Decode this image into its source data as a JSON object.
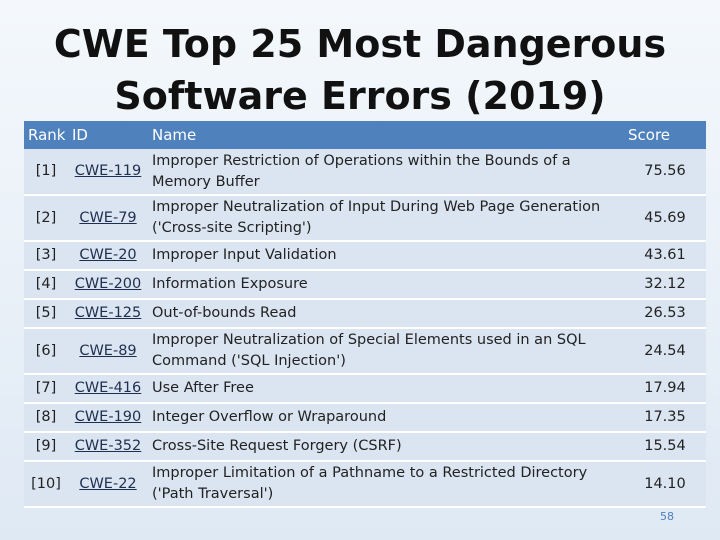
{
  "title_line1": "CWE Top 25 Most Dangerous",
  "title_line2": "Software Errors (2019)",
  "headers": {
    "rank": "Rank",
    "id": "ID",
    "name": "Name",
    "score": "Score"
  },
  "rows": [
    {
      "rank": "[1]",
      "id": "CWE-119",
      "name": "Improper Restriction of Operations within the Bounds of a Memory Buffer",
      "score": "75.56"
    },
    {
      "rank": "[2]",
      "id": "CWE-79",
      "name": "Improper Neutralization of Input During Web Page Generation ('Cross-site Scripting')",
      "score": "45.69"
    },
    {
      "rank": "[3]",
      "id": "CWE-20",
      "name": "Improper Input Validation",
      "score": "43.61"
    },
    {
      "rank": "[4]",
      "id": "CWE-200",
      "name": "Information Exposure",
      "score": "32.12"
    },
    {
      "rank": "[5]",
      "id": "CWE-125",
      "name": "Out-of-bounds Read",
      "score": "26.53"
    },
    {
      "rank": "[6]",
      "id": "CWE-89",
      "name": "Improper Neutralization of Special Elements used in an SQL Command ('SQL Injection')",
      "score": "24.54"
    },
    {
      "rank": "[7]",
      "id": "CWE-416",
      "name": "Use After Free",
      "score": "17.94"
    },
    {
      "rank": "[8]",
      "id": "CWE-190",
      "name": "Integer Overflow or Wraparound",
      "score": "17.35"
    },
    {
      "rank": "[9]",
      "id": "CWE-352",
      "name": "Cross-Site Request Forgery (CSRF)",
      "score": "15.54"
    },
    {
      "rank": "[10]",
      "id": "CWE-22",
      "name": "Improper Limitation of a Pathname to a Restricted Directory ('Path Traversal')",
      "score": "14.10"
    }
  ],
  "page_number": "58"
}
